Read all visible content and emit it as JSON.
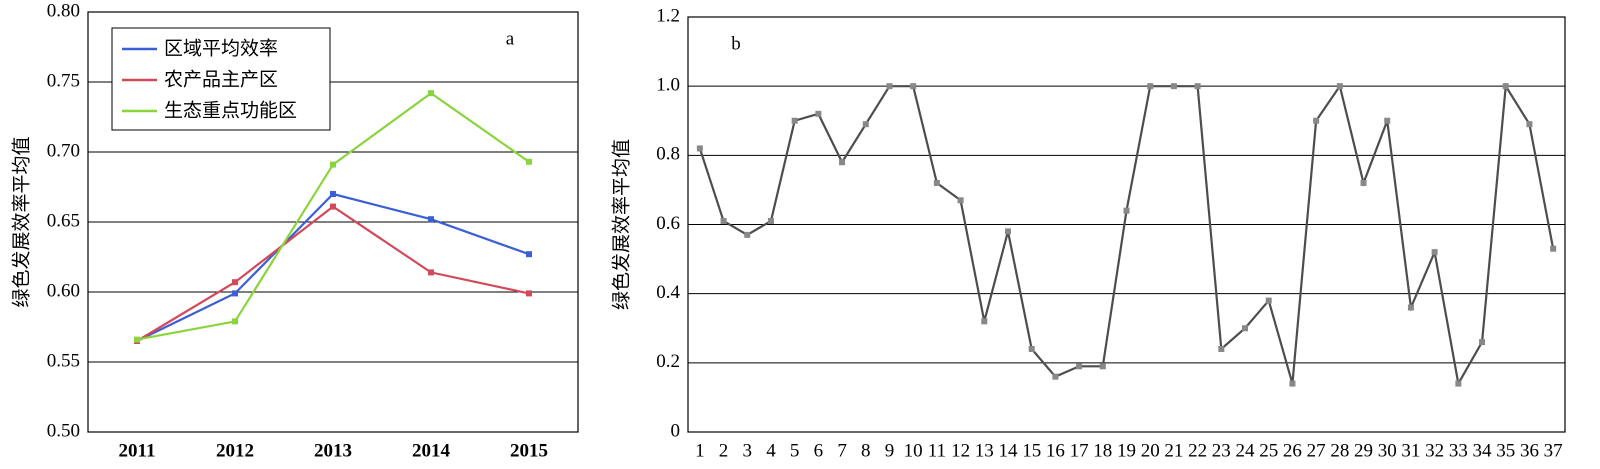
{
  "chart_data": [
    {
      "type": "line",
      "annotation": "a",
      "y_label": "绿色发展效率平均值",
      "categories": [
        "2011",
        "2012",
        "2013",
        "2014",
        "2015"
      ],
      "series": [
        {
          "name": "区域平均效率",
          "color": "#3b5fd6",
          "values": [
            0.565,
            0.599,
            0.67,
            0.652,
            0.627
          ]
        },
        {
          "name": "农产品主产区",
          "color": "#d24a5a",
          "values": [
            0.565,
            0.607,
            0.661,
            0.614,
            0.599
          ]
        },
        {
          "name": "生态重点功能区",
          "color": "#8ad43c",
          "values": [
            0.566,
            0.579,
            0.691,
            0.742,
            0.693
          ]
        }
      ],
      "ylim": [
        0.5,
        0.8
      ],
      "yticks": [
        {
          "value": 0.5,
          "label": "0.50"
        },
        0.55,
        {
          "value": 0.6,
          "label": "0.60"
        },
        0.65,
        {
          "value": 0.7,
          "label": "0.70"
        },
        0.75,
        {
          "value": 0.8,
          "label": "0.80"
        }
      ],
      "grid": true,
      "legend": "upper left"
    },
    {
      "type": "line",
      "annotation": "b",
      "y_label": "绿色发展效率平均值",
      "categories": [
        "1",
        "2",
        "3",
        "4",
        "5",
        "6",
        "7",
        "8",
        "9",
        "10",
        "11",
        "12",
        "13",
        "14",
        "15",
        "16",
        "17",
        "18",
        "19",
        "20",
        "21",
        "22",
        "23",
        "24",
        "25",
        "26",
        "27",
        "28",
        "29",
        "30",
        "31",
        "32",
        "33",
        "34",
        "35",
        "36",
        "37"
      ],
      "values": [
        0.82,
        0.61,
        0.57,
        0.61,
        0.9,
        0.92,
        0.78,
        0.89,
        1.0,
        1.0,
        0.72,
        0.67,
        0.32,
        0.58,
        0.24,
        0.16,
        0.19,
        0.19,
        0.64,
        1.0,
        1.0,
        1.0,
        0.24,
        0.3,
        0.38,
        0.14,
        0.9,
        1.0,
        0.72,
        0.9,
        0.36,
        0.52,
        0.14,
        0.26,
        1.0,
        0.89,
        0.53
      ],
      "color": "#4d4d4d",
      "marker_color": "#888888",
      "ylim": [
        0,
        1.2
      ],
      "yticks": [
        0,
        0.2,
        0.4,
        0.6,
        0.8,
        {
          "value": 1.0,
          "label": "1.0"
        },
        1.2
      ],
      "grid": true
    }
  ]
}
